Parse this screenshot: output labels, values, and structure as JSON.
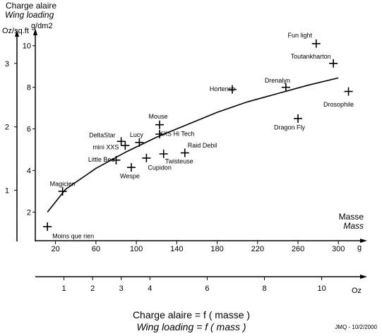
{
  "chart_data": {
    "type": "scatter",
    "title": "Charge alaire = f ( masse )",
    "subtitle": "Wing loading = f ( mass )",
    "signature": "JMQ - 10/2/2000",
    "ylabel": "Charge alaire",
    "ylabel_alt": "Wing loading",
    "y_unit_gdm2": "g/dm2",
    "y_unit_ozsqft": "Oz/sq.ft",
    "xlabel": "Masse",
    "xlabel_alt": "Mass",
    "x_unit": "g",
    "x2_unit": "Oz",
    "xlim": [
      0,
      318
    ],
    "ylim": [
      1,
      10.5
    ],
    "grid": false,
    "legend": "none",
    "x_ticks": [
      20,
      60,
      100,
      140,
      180,
      220,
      260,
      300
    ],
    "y_ticks": [
      2,
      4,
      6,
      8,
      10
    ],
    "y_tick_labels": [
      "2",
      "4",
      "6",
      "8",
      "10"
    ],
    "oz_sqft_ticks": [
      {
        "value": 1,
        "gdm2": 3.05
      },
      {
        "value": 2,
        "gdm2": 6.1
      },
      {
        "value": 3,
        "gdm2": 9.15
      }
    ],
    "oz_ticks": [
      1,
      2,
      3,
      4,
      6,
      8,
      10
    ],
    "grams_per_oz": 28.35,
    "points": [
      {
        "label": "Moins que rien",
        "x": 12,
        "y": 1.3
      },
      {
        "label": "Magicien",
        "x": 27,
        "y": 3.0
      },
      {
        "label": "Little Bee",
        "x": 80,
        "y": 4.5
      },
      {
        "label": "Wespe",
        "x": 95,
        "y": 4.15
      },
      {
        "label": "mini XXS",
        "x": 89,
        "y": 5.2
      },
      {
        "label": "DeltaStar",
        "x": 85,
        "y": 5.4
      },
      {
        "label": "Lucy",
        "x": 103,
        "y": 5.35
      },
      {
        "label": "Cupidon",
        "x": 110,
        "y": 4.6
      },
      {
        "label": "Mouse",
        "x": 123,
        "y": 6.2
      },
      {
        "label": "XXS Hi Tech",
        "x": 123,
        "y": 5.75
      },
      {
        "label": "Twisteuse",
        "x": 127,
        "y": 4.8
      },
      {
        "label": "Raid Debil",
        "x": 148,
        "y": 4.85
      },
      {
        "label": "Hortense",
        "x": 195,
        "y": 7.9
      },
      {
        "label": "Drenalyn",
        "x": 248,
        "y": 8.0
      },
      {
        "label": "Dragon Fly",
        "x": 260,
        "y": 6.5
      },
      {
        "label": "Fun light",
        "x": 278,
        "y": 10.1
      },
      {
        "label": "Toutankharton",
        "x": 295,
        "y": 9.15
      },
      {
        "label": "Drosophile",
        "x": 310,
        "y": 7.8
      }
    ],
    "trend_line": {
      "x": [
        12,
        30,
        60,
        90,
        120,
        150,
        180,
        210,
        240,
        270,
        300
      ],
      "y": [
        2.0,
        3.1,
        4.1,
        4.9,
        5.6,
        6.2,
        6.8,
        7.3,
        7.7,
        8.1,
        8.45
      ]
    }
  }
}
